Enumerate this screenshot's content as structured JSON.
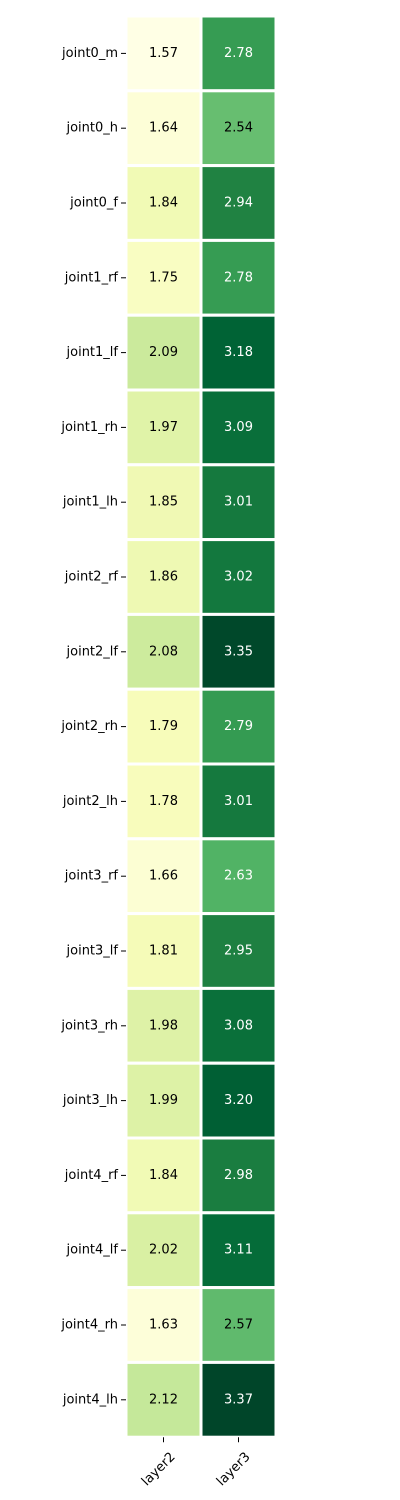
{
  "chart_data": {
    "type": "heatmap",
    "title": "",
    "xlabel": "",
    "ylabel": "",
    "colormap": "YlGn",
    "columns": [
      "layer2",
      "layer3"
    ],
    "rows": [
      "joint0_m",
      "joint0_h",
      "joint0_f",
      "joint1_rf",
      "joint1_lf",
      "joint1_rh",
      "joint1_lh",
      "joint2_rf",
      "joint2_lf",
      "joint2_rh",
      "joint2_lh",
      "joint3_rf",
      "joint3_lf",
      "joint3_rh",
      "joint3_lh",
      "joint4_rf",
      "joint4_lf",
      "joint4_rh",
      "joint4_lh"
    ],
    "values": [
      [
        1.57,
        2.78
      ],
      [
        1.64,
        2.54
      ],
      [
        1.84,
        2.94
      ],
      [
        1.75,
        2.78
      ],
      [
        2.09,
        3.18
      ],
      [
        1.97,
        3.09
      ],
      [
        1.85,
        3.01
      ],
      [
        1.86,
        3.02
      ],
      [
        2.08,
        3.35
      ],
      [
        1.79,
        2.79
      ],
      [
        1.78,
        3.01
      ],
      [
        1.66,
        2.63
      ],
      [
        1.81,
        2.95
      ],
      [
        1.98,
        3.08
      ],
      [
        1.99,
        3.2
      ],
      [
        1.84,
        2.98
      ],
      [
        2.02,
        3.11
      ],
      [
        1.63,
        2.57
      ],
      [
        2.12,
        3.37
      ]
    ],
    "annotations": [
      [
        "1.57",
        "2.78"
      ],
      [
        "1.64",
        "2.54"
      ],
      [
        "1.84",
        "2.94"
      ],
      [
        "1.75",
        "2.78"
      ],
      [
        "2.09",
        "3.18"
      ],
      [
        "1.97",
        "3.09"
      ],
      [
        "1.85",
        "3.01"
      ],
      [
        "1.86",
        "3.02"
      ],
      [
        "2.08",
        "3.35"
      ],
      [
        "1.79",
        "2.79"
      ],
      [
        "1.78",
        "3.01"
      ],
      [
        "1.66",
        "2.63"
      ],
      [
        "1.81",
        "2.95"
      ],
      [
        "1.98",
        "3.08"
      ],
      [
        "1.99",
        "3.20"
      ],
      [
        "1.84",
        "2.98"
      ],
      [
        "2.02",
        "3.11"
      ],
      [
        "1.63",
        "2.57"
      ],
      [
        "2.12",
        "3.37"
      ]
    ],
    "colorbar": false
  },
  "colors": {
    "background": "#ffffff",
    "cell_border": "#ffffff",
    "dark_text": "#000000",
    "light_text": "#ffffff"
  }
}
